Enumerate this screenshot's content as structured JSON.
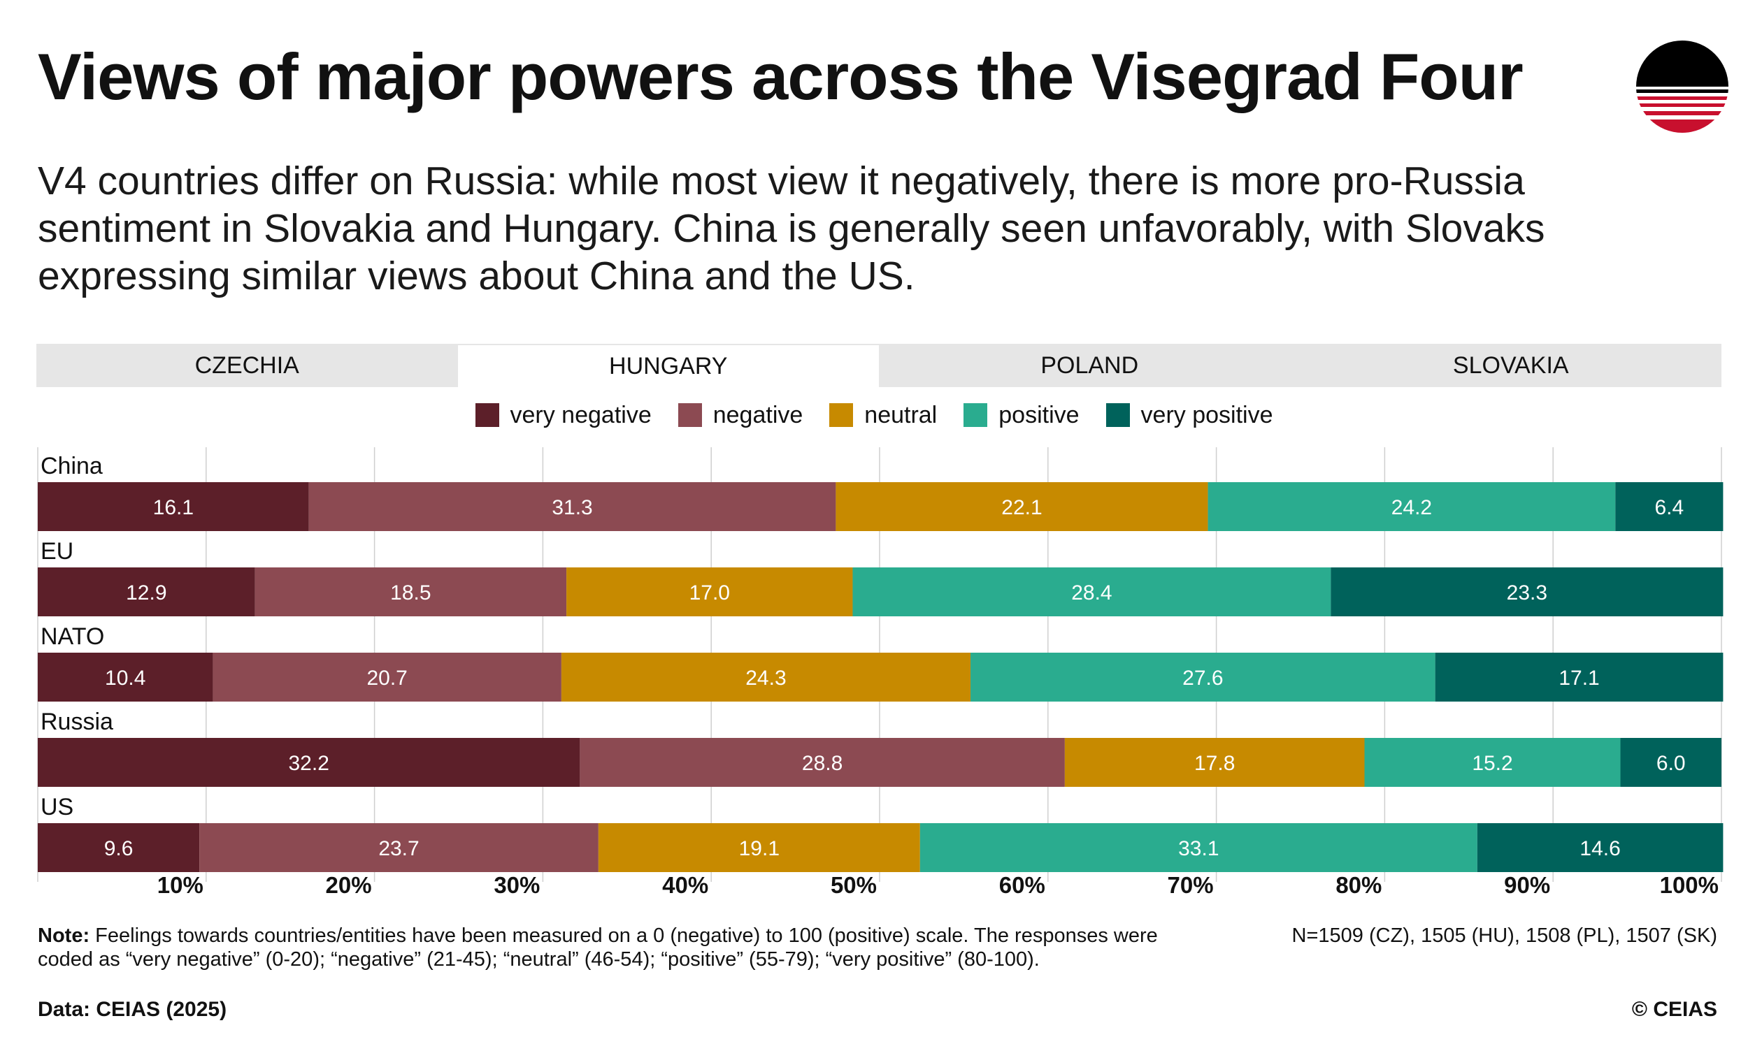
{
  "title": "Views of major powers across the Visegrad Four",
  "subtitle": "V4 countries differ on Russia: while most view it negatively, there is more pro-Russia sentiment in Slovakia and Hungary. China is generally seen unfavorably, with Slovaks expressing similar views about China and the US.",
  "tabs": [
    {
      "label": "CZECHIA",
      "active": false
    },
    {
      "label": "HUNGARY",
      "active": true
    },
    {
      "label": "POLAND",
      "active": false
    },
    {
      "label": "SLOVAKIA",
      "active": false
    }
  ],
  "legend": [
    {
      "label": "very negative",
      "color": "#5c1f29"
    },
    {
      "label": "negative",
      "color": "#8c4a52"
    },
    {
      "label": "neutral",
      "color": "#c78a00"
    },
    {
      "label": "positive",
      "color": "#2aac8f"
    },
    {
      "label": "very positive",
      "color": "#00625b"
    }
  ],
  "chart_data": {
    "type": "bar",
    "orientation": "horizontal",
    "stacked": true,
    "categories": [
      "China",
      "EU",
      "NATO",
      "Russia",
      "US"
    ],
    "series": [
      {
        "name": "very negative",
        "color": "#5c1f29",
        "values": [
          16.1,
          12.9,
          10.4,
          32.2,
          9.6
        ],
        "labels": [
          "16.1",
          "12.9",
          "10.4",
          "32.2",
          "9.6"
        ]
      },
      {
        "name": "negative",
        "color": "#8c4a52",
        "values": [
          31.3,
          18.5,
          20.7,
          28.8,
          23.7
        ],
        "labels": [
          "31.3",
          "18.5",
          "20.7",
          "28.8",
          "23.7"
        ]
      },
      {
        "name": "neutral",
        "color": "#c78a00",
        "values": [
          22.1,
          17.0,
          24.3,
          17.8,
          19.1
        ],
        "labels": [
          "22.1",
          "17.0",
          "24.3",
          "17.8",
          "19.1"
        ]
      },
      {
        "name": "positive",
        "color": "#2aac8f",
        "values": [
          24.2,
          28.4,
          27.6,
          15.2,
          33.1
        ],
        "labels": [
          "24.2",
          "28.4",
          "27.6",
          "15.2",
          "33.1"
        ]
      },
      {
        "name": "very positive",
        "color": "#00625b",
        "values": [
          6.4,
          23.3,
          17.1,
          6.0,
          14.6
        ],
        "labels": [
          "6.4",
          "23.3",
          "17.1",
          "6.0",
          "14.6"
        ]
      }
    ],
    "x_ticks": [
      "10%",
      "20%",
      "30%",
      "40%",
      "50%",
      "60%",
      "70%",
      "80%",
      "90%",
      "100%"
    ],
    "xlim": [
      0,
      100
    ],
    "grid": true,
    "legend_position": "top-center"
  },
  "note": {
    "label": "Note:",
    "text": "Feelings towards countries/entities have been measured on a 0 (negative) to 100 (positive) scale. The responses were coded as “very negative” (0-20); “negative” (21-45); “neutral” (46-54); “positive” (55-79); “very positive” (80-100)."
  },
  "sample_size": "N=1509 (CZ), 1505 (HU), 1508 (PL), 1507 (SK)",
  "source": "Data: CEIAS (2025)",
  "copyright": "© CEIAS",
  "logo": {
    "icon": "ceias-striped-circle-logo",
    "colors": [
      "#000000",
      "#c8102e",
      "#ffffff"
    ]
  }
}
